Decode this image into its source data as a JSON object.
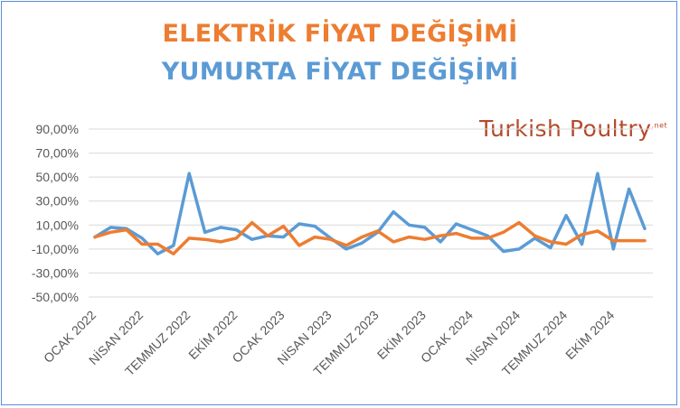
{
  "titles": {
    "line1": "ELEKTRİK FİYAT DEĞİŞİMİ",
    "line2": "YUMURTA FİYAT DEĞİŞİMİ"
  },
  "logo": {
    "text": "Turkish Poultry",
    "suffix": ".net"
  },
  "colors": {
    "electricity": "#ed7d31",
    "egg": "#5b9bd5",
    "grid": "#d9d9d9",
    "axis_text": "#595959",
    "frame": "#5b8ed6"
  },
  "chart_data": {
    "type": "line",
    "y_ticks": [
      "90,00%",
      "70,00%",
      "50,00%",
      "30,00%",
      "10,00%",
      "-10,00%",
      "-30,00%",
      "-50,00%"
    ],
    "ylim": [
      -50,
      90
    ],
    "x_tick_labels": [
      {
        "index": 0,
        "label": "OCAK 2022"
      },
      {
        "index": 3,
        "label": "NİSAN 2022"
      },
      {
        "index": 6,
        "label": "TEMMUZ 2022"
      },
      {
        "index": 9,
        "label": "EKİM 2022"
      },
      {
        "index": 12,
        "label": "OCAK 2023"
      },
      {
        "index": 15,
        "label": "NİSAN 2023"
      },
      {
        "index": 18,
        "label": "TEMMUZ 2023"
      },
      {
        "index": 21,
        "label": "EKİM 2023"
      },
      {
        "index": 24,
        "label": "OCAK 2024"
      },
      {
        "index": 27,
        "label": "NİSAN 2024"
      },
      {
        "index": 30,
        "label": "TEMMUZ 2024"
      },
      {
        "index": 33,
        "label": "EKİM 2024"
      }
    ],
    "series": [
      {
        "key": "egg",
        "values": [
          0,
          8,
          7,
          -1,
          -14,
          -7,
          53,
          4,
          8,
          6,
          -2,
          1,
          0,
          11,
          9,
          -1,
          -10,
          -5,
          4,
          21,
          10,
          8,
          -4,
          11,
          6,
          1,
          -12,
          -10,
          -1,
          -9,
          18,
          -6,
          53,
          -10,
          40,
          7
        ]
      },
      {
        "key": "electricity",
        "values": [
          0,
          4,
          6,
          -6,
          -6,
          -14,
          -1,
          -2,
          -4,
          -1,
          12,
          1,
          9,
          -7,
          0,
          -2,
          -7,
          0,
          5,
          -4,
          0,
          -2,
          1,
          3,
          -1,
          -1,
          4,
          12,
          1,
          -4,
          -6,
          2,
          5,
          -3,
          -3,
          -3
        ]
      }
    ]
  }
}
